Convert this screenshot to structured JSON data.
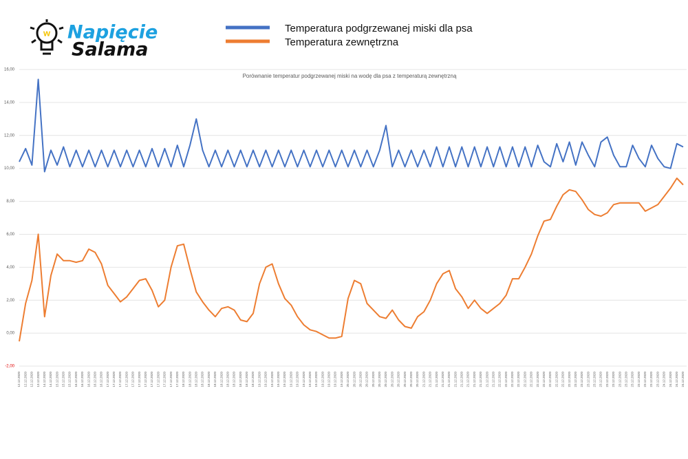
{
  "logo": {
    "line1": "Napięcie",
    "line2": "Salama"
  },
  "chart_data": {
    "type": "line",
    "title": "Porównanie temperatur podgrzewanej miski na wodę dla psa z temperaturą zewnętrzną",
    "legend": "top",
    "grid": true,
    "categories": [
      "12.12.2020",
      "12.12.2020",
      "12.12.2020",
      "13.12.2020",
      "14.12.2020",
      "14.12.2020",
      "15.12.2020",
      "15.12.2020",
      "15.12.2020",
      "16.12.2020",
      "16.12.2020",
      "16.12.2020",
      "16.12.2020",
      "16.12.2020",
      "17.12.2020",
      "17.12.2020",
      "17.12.2020",
      "17.12.2020",
      "17.12.2020",
      "17.12.2020",
      "17.12.2020",
      "17.12.2020",
      "17.12.2020",
      "17.12.2020",
      "17.12.2020",
      "17.12.2020",
      "18.12.2020",
      "18.12.2020",
      "18.12.2020",
      "18.12.2020",
      "18.12.2020",
      "18.12.2020",
      "18.12.2020",
      "18.12.2020",
      "18.12.2020",
      "18.12.2020",
      "18.12.2020",
      "18.12.2020",
      "19.12.2020",
      "19.12.2020",
      "19.12.2020",
      "19.12.2020",
      "19.12.2020",
      "19.12.2020",
      "19.12.2020",
      "19.12.2020",
      "19.12.2020",
      "19.12.2020",
      "19.12.2020",
      "19.12.2020",
      "19.12.2020",
      "19.12.2020",
      "20.12.2020",
      "20.12.2020",
      "20.12.2020",
      "20.12.2020",
      "20.12.2020",
      "20.12.2020",
      "20.12.2020",
      "20.12.2020",
      "20.12.2020",
      "20.12.2020",
      "20.12.2020",
      "20.12.2020",
      "21.12.2020",
      "21.12.2020",
      "21.12.2020",
      "21.12.2020",
      "21.12.2020",
      "21.12.2020",
      "21.12.2020",
      "21.12.2020",
      "21.12.2020",
      "21.12.2020",
      "21.12.2020",
      "21.12.2020",
      "22.12.2020",
      "22.12.2020",
      "22.12.2020",
      "22.12.2020",
      "22.12.2020",
      "22.12.2020",
      "22.12.2020",
      "22.12.2020",
      "22.12.2020",
      "22.12.2020",
      "22.12.2020",
      "22.12.2020",
      "23.12.2020",
      "23.12.2020",
      "23.12.2020",
      "23.12.2020",
      "23.12.2020",
      "23.12.2020",
      "23.12.2020",
      "23.12.2020",
      "23.12.2020",
      "23.12.2020",
      "23.12.2020",
      "23.12.2020",
      "23.12.2020",
      "23.12.2020",
      "24.12.2020",
      "24.12.2020",
      "24.12.2020",
      "24.12.2020"
    ],
    "series": [
      {
        "name": "Temperatura podgrzewanej miski dla psa",
        "color": "#4472c4",
        "values": [
          10.4,
          11.2,
          10.2,
          15.4,
          9.8,
          11.1,
          10.2,
          11.3,
          10.1,
          11.1,
          10.1,
          11.1,
          10.1,
          11.1,
          10.1,
          11.1,
          10.1,
          11.1,
          10.1,
          11.1,
          10.1,
          11.2,
          10.1,
          11.2,
          10.1,
          11.4,
          10.1,
          11.4,
          13.0,
          11.1,
          10.1,
          11.1,
          10.1,
          11.1,
          10.1,
          11.1,
          10.1,
          11.1,
          10.1,
          11.1,
          10.1,
          11.1,
          10.1,
          11.1,
          10.1,
          11.1,
          10.1,
          11.1,
          10.1,
          11.1,
          10.1,
          11.1,
          10.1,
          11.1,
          10.1,
          11.1,
          10.1,
          11.1,
          12.6,
          10.1,
          11.1,
          10.1,
          11.1,
          10.1,
          11.1,
          10.1,
          11.3,
          10.1,
          11.3,
          10.1,
          11.3,
          10.1,
          11.3,
          10.1,
          11.3,
          10.1,
          11.3,
          10.1,
          11.3,
          10.1,
          11.3,
          10.1,
          11.4,
          10.4,
          10.1,
          11.5,
          10.4,
          11.6,
          10.2,
          11.6,
          10.8,
          10.1,
          11.6,
          11.9,
          10.8,
          10.1,
          10.1,
          11.4,
          10.6,
          10.1,
          11.4,
          10.6,
          10.1,
          10.0,
          11.5,
          11.3
        ]
      },
      {
        "name": "Temperatura zewnętrzna",
        "color": "#ed7d31",
        "values": [
          -0.5,
          1.8,
          3.2,
          6.0,
          1.0,
          3.5,
          4.8,
          4.4,
          4.4,
          4.3,
          4.4,
          5.1,
          4.9,
          4.2,
          2.9,
          2.4,
          1.9,
          2.2,
          2.7,
          3.2,
          3.3,
          2.6,
          1.6,
          2.0,
          4.0,
          5.3,
          5.4,
          3.9,
          2.5,
          1.9,
          1.4,
          1.0,
          1.5,
          1.6,
          1.4,
          0.8,
          0.7,
          1.2,
          3.0,
          4.0,
          4.2,
          3.0,
          2.1,
          1.7,
          1.0,
          0.5,
          0.2,
          0.1,
          -0.1,
          -0.3,
          -0.3,
          -0.2,
          2.1,
          3.2,
          3.0,
          1.8,
          1.4,
          1.0,
          0.9,
          1.4,
          0.8,
          0.4,
          0.3,
          1.0,
          1.3,
          2.0,
          3.0,
          3.6,
          3.8,
          2.7,
          2.2,
          1.5,
          2.0,
          1.5,
          1.2,
          1.5,
          1.8,
          2.3,
          3.3,
          3.3,
          4.0,
          4.8,
          5.9,
          6.8,
          6.9,
          7.7,
          8.4,
          8.7,
          8.6,
          8.1,
          7.5,
          7.2,
          7.1,
          7.3,
          7.8,
          7.9,
          7.9,
          7.9,
          7.9,
          7.4,
          7.6,
          7.8,
          8.3,
          8.8,
          9.4,
          9.0
        ]
      }
    ],
    "ylim": [
      -2,
      16
    ],
    "yticks": [
      {
        "value": -2,
        "label": "-2,00"
      },
      {
        "value": 0,
        "label": "0,00"
      },
      {
        "value": 2,
        "label": "2,00"
      },
      {
        "value": 4,
        "label": "4,00"
      },
      {
        "value": 6,
        "label": "6,00"
      },
      {
        "value": 8,
        "label": "8,00"
      },
      {
        "value": 10,
        "label": "10,00"
      },
      {
        "value": 12,
        "label": "12,00"
      },
      {
        "value": 14,
        "label": "14,00"
      },
      {
        "value": 16,
        "label": "16,00"
      }
    ]
  }
}
